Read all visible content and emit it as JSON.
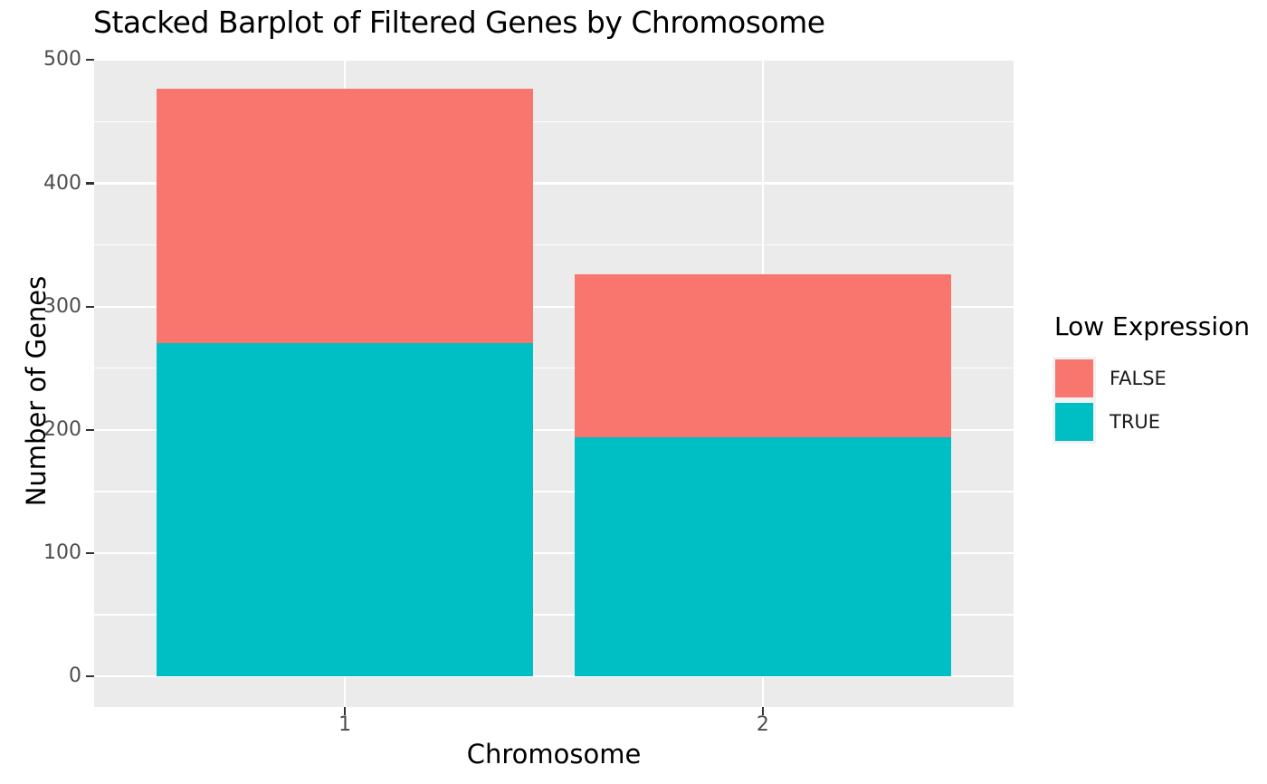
{
  "chart_data": {
    "type": "bar",
    "stacked": true,
    "title": "Stacked Barplot of Filtered Genes by Chromosome",
    "xlabel": "Chromosome",
    "ylabel": "Number of Genes",
    "categories": [
      "1",
      "2"
    ],
    "series": [
      {
        "name": "TRUE",
        "color": "#00BFC4",
        "values": [
          270,
          194
        ]
      },
      {
        "name": "FALSE",
        "color": "#F8766D",
        "values": [
          207,
          132
        ]
      }
    ],
    "ylim": [
      0,
      500
    ],
    "y_major_ticks": [
      0,
      100,
      200,
      300,
      400,
      500
    ],
    "y_minor_ticks": [
      50,
      150,
      250,
      350,
      450
    ],
    "grid": true,
    "legend": {
      "title": "Low Expression",
      "position": "right",
      "entries": [
        {
          "label": "FALSE",
          "color": "#F8766D"
        },
        {
          "label": "TRUE",
          "color": "#00BFC4"
        }
      ]
    },
    "style": {
      "panel_background": "#EBEBEB",
      "grid_color": "#FFFFFF",
      "tick_color": "#333333",
      "tick_label_color": "#4D4D4D",
      "bar_width_ratio": 0.9
    }
  }
}
